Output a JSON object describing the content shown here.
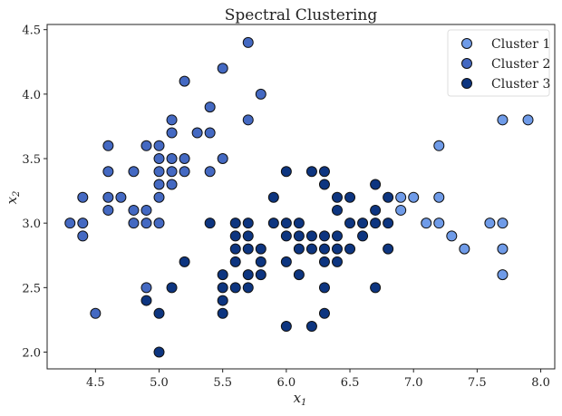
{
  "chart_data": {
    "type": "scatter",
    "title": "Spectral Clustering",
    "xlabel": "x",
    "xlabel_sub": "1",
    "ylabel": "x",
    "ylabel_sub": "2",
    "xlim": [
      4.12,
      8.11
    ],
    "ylim": [
      1.87,
      4.54
    ],
    "xticks": [
      "4.5",
      "5.0",
      "5.5",
      "6.0",
      "6.5",
      "7.0",
      "7.5",
      "8.0"
    ],
    "yticks": [
      "2.0",
      "2.5",
      "3.0",
      "3.5",
      "4.0",
      "4.5"
    ],
    "grid": false,
    "legend_position": "top-right",
    "series": [
      {
        "name": "Cluster 1",
        "color": "#6f9be8",
        "points": [
          [
            7.7,
            3.8
          ],
          [
            7.9,
            3.8
          ],
          [
            7.2,
            3.6
          ],
          [
            6.9,
            3.2
          ],
          [
            7.0,
            3.2
          ],
          [
            7.2,
            3.2
          ],
          [
            6.9,
            3.1
          ],
          [
            7.1,
            3.0
          ],
          [
            7.2,
            3.0
          ],
          [
            7.6,
            3.0
          ],
          [
            7.7,
            3.0
          ],
          [
            7.3,
            2.9
          ],
          [
            7.4,
            2.8
          ],
          [
            7.7,
            2.8
          ],
          [
            7.7,
            2.6
          ]
        ]
      },
      {
        "name": "Cluster 2",
        "color": "#4469c2",
        "points": [
          [
            5.7,
            4.4
          ],
          [
            5.5,
            4.2
          ],
          [
            5.2,
            4.1
          ],
          [
            5.8,
            4.0
          ],
          [
            5.4,
            3.9
          ],
          [
            5.1,
            3.8
          ],
          [
            5.7,
            3.8
          ],
          [
            5.1,
            3.7
          ],
          [
            5.3,
            3.7
          ],
          [
            5.4,
            3.7
          ],
          [
            4.6,
            3.6
          ],
          [
            4.9,
            3.6
          ],
          [
            5.0,
            3.6
          ],
          [
            5.0,
            3.5
          ],
          [
            5.1,
            3.5
          ],
          [
            5.2,
            3.5
          ],
          [
            5.5,
            3.5
          ],
          [
            4.6,
            3.4
          ],
          [
            4.8,
            3.4
          ],
          [
            5.0,
            3.4
          ],
          [
            5.1,
            3.4
          ],
          [
            5.2,
            3.4
          ],
          [
            5.4,
            3.4
          ],
          [
            5.0,
            3.3
          ],
          [
            5.1,
            3.3
          ],
          [
            4.4,
            3.2
          ],
          [
            4.6,
            3.2
          ],
          [
            4.7,
            3.2
          ],
          [
            5.0,
            3.2
          ],
          [
            4.6,
            3.1
          ],
          [
            4.8,
            3.1
          ],
          [
            4.9,
            3.1
          ],
          [
            4.3,
            3.0
          ],
          [
            4.4,
            3.0
          ],
          [
            4.8,
            3.0
          ],
          [
            4.9,
            3.0
          ],
          [
            5.0,
            3.0
          ],
          [
            4.4,
            2.9
          ],
          [
            4.9,
            2.5
          ],
          [
            4.5,
            2.3
          ]
        ]
      },
      {
        "name": "Cluster 3",
        "color": "#0d3580",
        "points": [
          [
            6.0,
            3.4
          ],
          [
            6.2,
            3.4
          ],
          [
            6.3,
            3.4
          ],
          [
            6.3,
            3.3
          ],
          [
            6.7,
            3.3
          ],
          [
            5.9,
            3.2
          ],
          [
            6.4,
            3.2
          ],
          [
            6.5,
            3.2
          ],
          [
            6.8,
            3.2
          ],
          [
            6.4,
            3.1
          ],
          [
            6.7,
            3.1
          ],
          [
            5.4,
            3.0
          ],
          [
            5.6,
            3.0
          ],
          [
            5.7,
            3.0
          ],
          [
            5.9,
            3.0
          ],
          [
            6.0,
            3.0
          ],
          [
            6.1,
            3.0
          ],
          [
            6.5,
            3.0
          ],
          [
            6.6,
            3.0
          ],
          [
            6.7,
            3.0
          ],
          [
            6.8,
            3.0
          ],
          [
            5.6,
            2.9
          ],
          [
            5.7,
            2.9
          ],
          [
            6.0,
            2.9
          ],
          [
            6.1,
            2.9
          ],
          [
            6.2,
            2.9
          ],
          [
            6.3,
            2.9
          ],
          [
            6.4,
            2.9
          ],
          [
            6.6,
            2.9
          ],
          [
            5.6,
            2.8
          ],
          [
            5.7,
            2.8
          ],
          [
            5.8,
            2.8
          ],
          [
            6.1,
            2.8
          ],
          [
            6.2,
            2.8
          ],
          [
            6.3,
            2.8
          ],
          [
            6.4,
            2.8
          ],
          [
            6.5,
            2.8
          ],
          [
            6.8,
            2.8
          ],
          [
            5.2,
            2.7
          ],
          [
            5.6,
            2.7
          ],
          [
            5.8,
            2.7
          ],
          [
            6.0,
            2.7
          ],
          [
            6.3,
            2.7
          ],
          [
            6.4,
            2.7
          ],
          [
            5.5,
            2.6
          ],
          [
            5.7,
            2.6
          ],
          [
            5.8,
            2.6
          ],
          [
            6.1,
            2.6
          ],
          [
            5.1,
            2.5
          ],
          [
            5.5,
            2.5
          ],
          [
            5.6,
            2.5
          ],
          [
            5.7,
            2.5
          ],
          [
            6.3,
            2.5
          ],
          [
            6.7,
            2.5
          ],
          [
            4.9,
            2.4
          ],
          [
            5.5,
            2.4
          ],
          [
            5.0,
            2.3
          ],
          [
            5.5,
            2.3
          ],
          [
            6.3,
            2.3
          ],
          [
            6.0,
            2.2
          ],
          [
            6.2,
            2.2
          ],
          [
            5.0,
            2.0
          ]
        ]
      }
    ]
  }
}
